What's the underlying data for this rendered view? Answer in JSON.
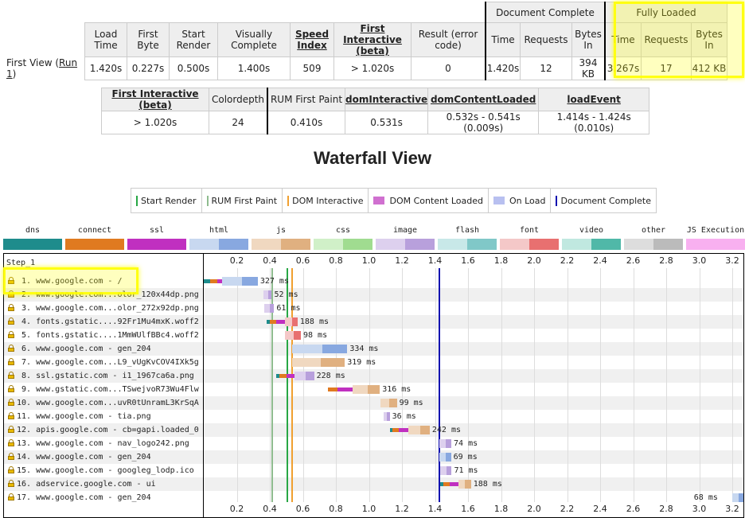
{
  "summary": {
    "group_document": "Document Complete",
    "group_fully": "Fully Loaded",
    "headers": [
      "Load Time",
      "First Byte",
      "Start Render",
      "Visually Complete",
      "Speed Index",
      "First Interactive (beta)",
      "Result (error code)"
    ],
    "doc_headers": [
      "Time",
      "Requests",
      "Bytes In"
    ],
    "full_headers": [
      "Time",
      "Requests",
      "Bytes In"
    ],
    "row_label": "First View (",
    "row_link": "Run 1",
    "row_label_end": ")",
    "values": [
      "1.420s",
      "0.227s",
      "0.500s",
      "1.400s",
      "509",
      "> 1.020s",
      "0"
    ],
    "doc_values": [
      "1.420s",
      "12",
      "394 KB"
    ],
    "full_values": [
      "3.267s",
      "17",
      "412 KB"
    ]
  },
  "metrics": {
    "headers": [
      "First Interactive (beta)",
      "Colordepth",
      "RUM First Paint",
      "domInteractive",
      "domContentLoaded",
      "loadEvent"
    ],
    "values": [
      "> 1.020s",
      "24",
      "0.410s",
      "0.531s",
      "0.532s - 0.541s (0.009s)",
      "1.414s - 1.424s (0.010s)"
    ]
  },
  "waterfall_title": "Waterfall View",
  "legend": [
    {
      "label": "Start Render",
      "color": "#28a745",
      "kind": "line"
    },
    {
      "label": "RUM First Paint",
      "color": "#8fbc8f",
      "kind": "line"
    },
    {
      "label": "DOM Interactive",
      "color": "#f0a030",
      "kind": "line"
    },
    {
      "label": "DOM Content Loaded",
      "color": "#d070d0",
      "kind": "box"
    },
    {
      "label": "On Load",
      "color": "#b8c0f0",
      "kind": "box"
    },
    {
      "label": "Document Complete",
      "color": "#1010b0",
      "kind": "line"
    }
  ],
  "request_types": [
    {
      "label": "dns",
      "c1": "#1e8c8c",
      "c2": "#1e8c8c"
    },
    {
      "label": "connect",
      "c1": "#e07a20",
      "c2": "#e07a20"
    },
    {
      "label": "ssl",
      "c1": "#c030c0",
      "c2": "#c030c0"
    },
    {
      "label": "html",
      "c1": "#c8d8f0",
      "c2": "#88a8e0"
    },
    {
      "label": "js",
      "c1": "#f0d8c0",
      "c2": "#e0b080"
    },
    {
      "label": "css",
      "c1": "#d0f0c8",
      "c2": "#a0dc90"
    },
    {
      "label": "image",
      "c1": "#ddd0ee",
      "c2": "#b8a0dc"
    },
    {
      "label": "flash",
      "c1": "#c8e8e8",
      "c2": "#80c8c8"
    },
    {
      "label": "font",
      "c1": "#f4c8c8",
      "c2": "#e87070"
    },
    {
      "label": "video",
      "c1": "#c0e8e0",
      "c2": "#50b8a8"
    },
    {
      "label": "other",
      "c1": "#dddddd",
      "c2": "#bbbbbb"
    },
    {
      "label": "JS Execution",
      "c1": "#f8b0f0",
      "c2": "#f8b0f0"
    }
  ],
  "step_label": "Step_1",
  "ticks": [
    "0.2",
    "0.4",
    "0.6",
    "0.8",
    "1.0",
    "1.2",
    "1.4",
    "1.6",
    "1.8",
    "2.0",
    "2.2",
    "2.4",
    "2.6",
    "2.8",
    "3.0",
    "3.2"
  ],
  "tick_values": [
    0.2,
    0.4,
    0.6,
    0.8,
    1.0,
    1.2,
    1.4,
    1.6,
    1.8,
    2.0,
    2.2,
    2.4,
    2.6,
    2.8,
    3.0,
    3.2
  ],
  "events": {
    "start_render": 0.5,
    "rum_first_paint": 0.41,
    "dom_interactive": 0.531,
    "doc_complete": 1.42
  },
  "requests": [
    {
      "label": "  1. www.google.com - /",
      "type": "html",
      "start": 0.0,
      "end": 0.327,
      "pre": [
        [
          "dns",
          0.0,
          0.04
        ],
        [
          "connect",
          0.04,
          0.08
        ],
        [
          "ssl",
          0.08,
          0.11
        ]
      ],
      "ms": "327 ms"
    },
    {
      "label": "  2. www.google.com...olor_120x44dp.png",
      "type": "image",
      "start": 0.36,
      "end": 0.412,
      "pre": [],
      "ms": "52 ms"
    },
    {
      "label": "  3. www.google.com...olor_272x92dp.png",
      "type": "image",
      "start": 0.365,
      "end": 0.426,
      "pre": [],
      "ms": "61 ms"
    },
    {
      "label": "  4. fonts.gstatic....92Fr1Mu4mxK.woff2",
      "type": "font",
      "start": 0.38,
      "end": 0.568,
      "pre": [
        [
          "dns",
          0.38,
          0.4
        ],
        [
          "connect",
          0.4,
          0.44
        ],
        [
          "ssl",
          0.44,
          0.49
        ]
      ],
      "ms": "188 ms"
    },
    {
      "label": "  5. fonts.gstatic....1MmWUlfBBc4.woff2",
      "type": "font",
      "start": 0.49,
      "end": 0.588,
      "pre": [],
      "ms": "98 ms"
    },
    {
      "label": "  6. www.google.com - gen_204",
      "type": "html",
      "start": 0.535,
      "end": 0.869,
      "pre": [],
      "ms": "334 ms"
    },
    {
      "label": "  7. www.google.com...L9_vUgKvCOV4IXk5g",
      "type": "js",
      "start": 0.535,
      "end": 0.854,
      "pre": [],
      "ms": "319 ms"
    },
    {
      "label": "  8. ssl.gstatic.com - i1_1967ca6a.png",
      "type": "image",
      "start": 0.44,
      "end": 0.668,
      "pre": [
        [
          "dns",
          0.44,
          0.46
        ],
        [
          "connect",
          0.46,
          0.5
        ],
        [
          "ssl",
          0.5,
          0.55
        ]
      ],
      "ms": "228 ms"
    },
    {
      "label": "  9. www.gstatic.com...TSwejvoR73Wu4Flw",
      "type": "js",
      "start": 0.75,
      "end": 1.066,
      "pre": [
        [
          "connect",
          0.75,
          0.81
        ],
        [
          "ssl",
          0.81,
          0.9
        ]
      ],
      "ms": "316 ms"
    },
    {
      "label": " 10. www.google.com...uvR0tUnramL3KrSqA",
      "type": "js",
      "start": 1.07,
      "end": 1.169,
      "pre": [],
      "ms": "99 ms"
    },
    {
      "label": " 11. www.google.com - tia.png",
      "type": "image",
      "start": 1.09,
      "end": 1.126,
      "pre": [],
      "ms": "36 ms"
    },
    {
      "label": " 12. apis.google.com - cb=gapi.loaded_0",
      "type": "js",
      "start": 1.126,
      "end": 1.368,
      "pre": [
        [
          "dns",
          1.126,
          1.14
        ],
        [
          "connect",
          1.14,
          1.18
        ],
        [
          "ssl",
          1.18,
          1.24
        ]
      ],
      "ms": "242 ms"
    },
    {
      "label": " 13. www.google.com - nav_logo242.png",
      "type": "image",
      "start": 1.425,
      "end": 1.499,
      "pre": [],
      "ms": "74 ms"
    },
    {
      "label": " 14. www.google.com - gen_204",
      "type": "html",
      "start": 1.428,
      "end": 1.497,
      "pre": [],
      "ms": "69 ms"
    },
    {
      "label": " 15. www.google.com - googleg_lodp.ico",
      "type": "image",
      "start": 1.43,
      "end": 1.501,
      "pre": [],
      "ms": "71 ms"
    },
    {
      "label": " 16. adservice.google.com - ui",
      "type": "js",
      "start": 1.43,
      "end": 1.618,
      "pre": [
        [
          "dns",
          1.43,
          1.45
        ],
        [
          "connect",
          1.45,
          1.49
        ],
        [
          "ssl",
          1.49,
          1.54
        ]
      ],
      "ms": "188 ms"
    },
    {
      "label": " 17. www.google.com - gen_204",
      "type": "html",
      "start": 3.199,
      "end": 3.267,
      "pre": [],
      "ms": "68 ms"
    }
  ]
}
